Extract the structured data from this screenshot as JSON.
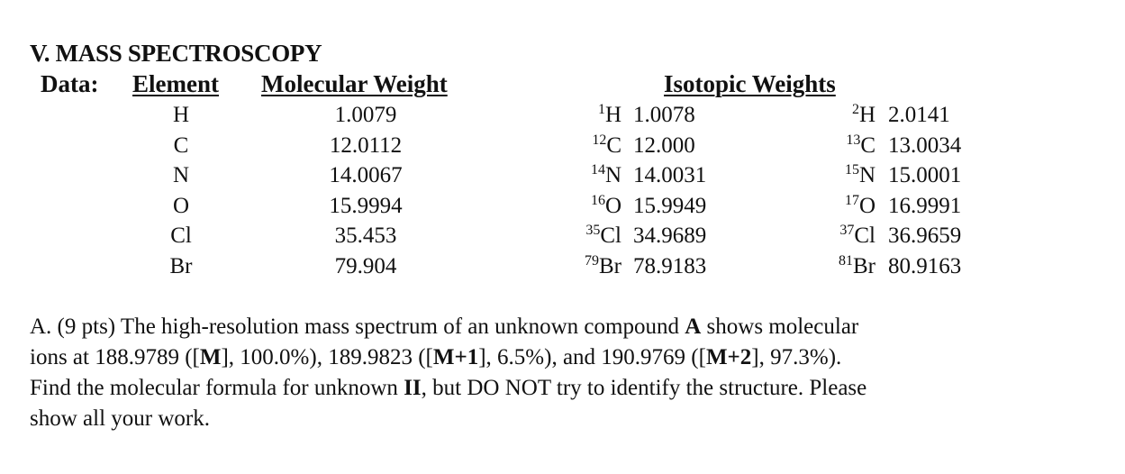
{
  "section_title": "V. MASS SPECTROSCOPY",
  "table": {
    "data_label": "Data:",
    "headers": {
      "element": "Element",
      "molecular_weight": "Molecular Weight",
      "isotopic_weights": "Isotopic Weights"
    },
    "rows": [
      {
        "element": "H",
        "mw": "1.0079",
        "iso1_mass": "1",
        "iso1_sym": "H",
        "iso1_wt": "1.0078",
        "iso2_mass": "2",
        "iso2_sym": "H",
        "iso2_wt": "2.0141"
      },
      {
        "element": "C",
        "mw": "12.0112",
        "iso1_mass": "12",
        "iso1_sym": "C",
        "iso1_wt": "12.000",
        "iso2_mass": "13",
        "iso2_sym": "C",
        "iso2_wt": "13.0034"
      },
      {
        "element": "N",
        "mw": "14.0067",
        "iso1_mass": "14",
        "iso1_sym": "N",
        "iso1_wt": "14.0031",
        "iso2_mass": "15",
        "iso2_sym": "N",
        "iso2_wt": "15.0001"
      },
      {
        "element": "O",
        "mw": "15.9994",
        "iso1_mass": "16",
        "iso1_sym": "O",
        "iso1_wt": "15.9949",
        "iso2_mass": "17",
        "iso2_sym": "O",
        "iso2_wt": "16.9991"
      },
      {
        "element": "Cl",
        "mw": "35.453",
        "iso1_mass": "35",
        "iso1_sym": "Cl",
        "iso1_wt": "34.9689",
        "iso2_mass": "37",
        "iso2_sym": "Cl",
        "iso2_wt": "36.9659"
      },
      {
        "element": "Br",
        "mw": "79.904",
        "iso1_mass": "79",
        "iso1_sym": "Br",
        "iso1_wt": "78.9183",
        "iso2_mass": "81",
        "iso2_sym": "Br",
        "iso2_wt": "80.9163"
      }
    ]
  },
  "question": {
    "line1": {
      "a": "A. (9 pts) The high-resolution mass spectrum of an unknown compound ",
      "b": "A",
      "c": " shows molecular"
    },
    "line2": {
      "a": "ions at 188.9789 ([",
      "b": "M",
      "c": "], 100.0%), 189.9823 ([",
      "d": "M+1",
      "e": "], 6.5%), and 190.9769 ([",
      "f": "M+2",
      "g": "], 97.3%)."
    },
    "line3": {
      "a": "Find the molecular formula for unknown ",
      "b": "II",
      "c": ", but DO NOT try to identify the structure. Please"
    },
    "line4": {
      "a": "show all your work."
    }
  }
}
